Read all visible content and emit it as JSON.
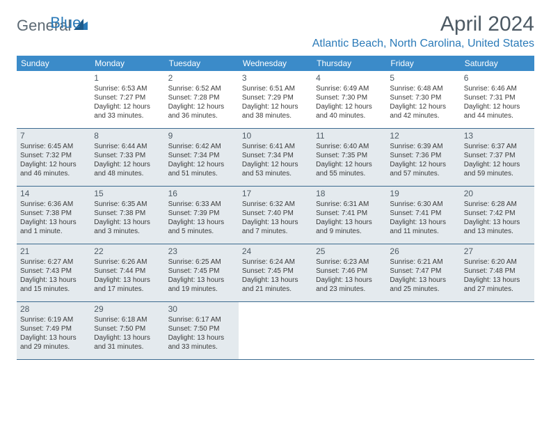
{
  "logo": {
    "text1": "General",
    "text2": "Blue"
  },
  "title": "April 2024",
  "location": "Atlantic Beach, North Carolina, United States",
  "weekdays": [
    "Sunday",
    "Monday",
    "Tuesday",
    "Wednesday",
    "Thursday",
    "Friday",
    "Saturday"
  ],
  "colors": {
    "header_bg": "#3b8bc9",
    "accent": "#2a7ab8",
    "shade": "#e4eaee",
    "rule": "#3b6a8f"
  },
  "weeks": [
    [
      {
        "day": "",
        "sunrise": "",
        "sunset": "",
        "daylight": "",
        "shaded": false
      },
      {
        "day": "1",
        "sunrise": "Sunrise: 6:53 AM",
        "sunset": "Sunset: 7:27 PM",
        "daylight": "Daylight: 12 hours and 33 minutes.",
        "shaded": false
      },
      {
        "day": "2",
        "sunrise": "Sunrise: 6:52 AM",
        "sunset": "Sunset: 7:28 PM",
        "daylight": "Daylight: 12 hours and 36 minutes.",
        "shaded": false
      },
      {
        "day": "3",
        "sunrise": "Sunrise: 6:51 AM",
        "sunset": "Sunset: 7:29 PM",
        "daylight": "Daylight: 12 hours and 38 minutes.",
        "shaded": false
      },
      {
        "day": "4",
        "sunrise": "Sunrise: 6:49 AM",
        "sunset": "Sunset: 7:30 PM",
        "daylight": "Daylight: 12 hours and 40 minutes.",
        "shaded": false
      },
      {
        "day": "5",
        "sunrise": "Sunrise: 6:48 AM",
        "sunset": "Sunset: 7:30 PM",
        "daylight": "Daylight: 12 hours and 42 minutes.",
        "shaded": false
      },
      {
        "day": "6",
        "sunrise": "Sunrise: 6:46 AM",
        "sunset": "Sunset: 7:31 PM",
        "daylight": "Daylight: 12 hours and 44 minutes.",
        "shaded": false
      }
    ],
    [
      {
        "day": "7",
        "sunrise": "Sunrise: 6:45 AM",
        "sunset": "Sunset: 7:32 PM",
        "daylight": "Daylight: 12 hours and 46 minutes.",
        "shaded": true
      },
      {
        "day": "8",
        "sunrise": "Sunrise: 6:44 AM",
        "sunset": "Sunset: 7:33 PM",
        "daylight": "Daylight: 12 hours and 48 minutes.",
        "shaded": true
      },
      {
        "day": "9",
        "sunrise": "Sunrise: 6:42 AM",
        "sunset": "Sunset: 7:34 PM",
        "daylight": "Daylight: 12 hours and 51 minutes.",
        "shaded": true
      },
      {
        "day": "10",
        "sunrise": "Sunrise: 6:41 AM",
        "sunset": "Sunset: 7:34 PM",
        "daylight": "Daylight: 12 hours and 53 minutes.",
        "shaded": true
      },
      {
        "day": "11",
        "sunrise": "Sunrise: 6:40 AM",
        "sunset": "Sunset: 7:35 PM",
        "daylight": "Daylight: 12 hours and 55 minutes.",
        "shaded": true
      },
      {
        "day": "12",
        "sunrise": "Sunrise: 6:39 AM",
        "sunset": "Sunset: 7:36 PM",
        "daylight": "Daylight: 12 hours and 57 minutes.",
        "shaded": true
      },
      {
        "day": "13",
        "sunrise": "Sunrise: 6:37 AM",
        "sunset": "Sunset: 7:37 PM",
        "daylight": "Daylight: 12 hours and 59 minutes.",
        "shaded": true
      }
    ],
    [
      {
        "day": "14",
        "sunrise": "Sunrise: 6:36 AM",
        "sunset": "Sunset: 7:38 PM",
        "daylight": "Daylight: 13 hours and 1 minute.",
        "shaded": true
      },
      {
        "day": "15",
        "sunrise": "Sunrise: 6:35 AM",
        "sunset": "Sunset: 7:38 PM",
        "daylight": "Daylight: 13 hours and 3 minutes.",
        "shaded": true
      },
      {
        "day": "16",
        "sunrise": "Sunrise: 6:33 AM",
        "sunset": "Sunset: 7:39 PM",
        "daylight": "Daylight: 13 hours and 5 minutes.",
        "shaded": true
      },
      {
        "day": "17",
        "sunrise": "Sunrise: 6:32 AM",
        "sunset": "Sunset: 7:40 PM",
        "daylight": "Daylight: 13 hours and 7 minutes.",
        "shaded": true
      },
      {
        "day": "18",
        "sunrise": "Sunrise: 6:31 AM",
        "sunset": "Sunset: 7:41 PM",
        "daylight": "Daylight: 13 hours and 9 minutes.",
        "shaded": true
      },
      {
        "day": "19",
        "sunrise": "Sunrise: 6:30 AM",
        "sunset": "Sunset: 7:41 PM",
        "daylight": "Daylight: 13 hours and 11 minutes.",
        "shaded": true
      },
      {
        "day": "20",
        "sunrise": "Sunrise: 6:28 AM",
        "sunset": "Sunset: 7:42 PM",
        "daylight": "Daylight: 13 hours and 13 minutes.",
        "shaded": true
      }
    ],
    [
      {
        "day": "21",
        "sunrise": "Sunrise: 6:27 AM",
        "sunset": "Sunset: 7:43 PM",
        "daylight": "Daylight: 13 hours and 15 minutes.",
        "shaded": true
      },
      {
        "day": "22",
        "sunrise": "Sunrise: 6:26 AM",
        "sunset": "Sunset: 7:44 PM",
        "daylight": "Daylight: 13 hours and 17 minutes.",
        "shaded": true
      },
      {
        "day": "23",
        "sunrise": "Sunrise: 6:25 AM",
        "sunset": "Sunset: 7:45 PM",
        "daylight": "Daylight: 13 hours and 19 minutes.",
        "shaded": true
      },
      {
        "day": "24",
        "sunrise": "Sunrise: 6:24 AM",
        "sunset": "Sunset: 7:45 PM",
        "daylight": "Daylight: 13 hours and 21 minutes.",
        "shaded": true
      },
      {
        "day": "25",
        "sunrise": "Sunrise: 6:23 AM",
        "sunset": "Sunset: 7:46 PM",
        "daylight": "Daylight: 13 hours and 23 minutes.",
        "shaded": true
      },
      {
        "day": "26",
        "sunrise": "Sunrise: 6:21 AM",
        "sunset": "Sunset: 7:47 PM",
        "daylight": "Daylight: 13 hours and 25 minutes.",
        "shaded": true
      },
      {
        "day": "27",
        "sunrise": "Sunrise: 6:20 AM",
        "sunset": "Sunset: 7:48 PM",
        "daylight": "Daylight: 13 hours and 27 minutes.",
        "shaded": true
      }
    ],
    [
      {
        "day": "28",
        "sunrise": "Sunrise: 6:19 AM",
        "sunset": "Sunset: 7:49 PM",
        "daylight": "Daylight: 13 hours and 29 minutes.",
        "shaded": true
      },
      {
        "day": "29",
        "sunrise": "Sunrise: 6:18 AM",
        "sunset": "Sunset: 7:50 PM",
        "daylight": "Daylight: 13 hours and 31 minutes.",
        "shaded": true
      },
      {
        "day": "30",
        "sunrise": "Sunrise: 6:17 AM",
        "sunset": "Sunset: 7:50 PM",
        "daylight": "Daylight: 13 hours and 33 minutes.",
        "shaded": true
      },
      {
        "day": "",
        "sunrise": "",
        "sunset": "",
        "daylight": "",
        "shaded": false
      },
      {
        "day": "",
        "sunrise": "",
        "sunset": "",
        "daylight": "",
        "shaded": false
      },
      {
        "day": "",
        "sunrise": "",
        "sunset": "",
        "daylight": "",
        "shaded": false
      },
      {
        "day": "",
        "sunrise": "",
        "sunset": "",
        "daylight": "",
        "shaded": false
      }
    ]
  ]
}
